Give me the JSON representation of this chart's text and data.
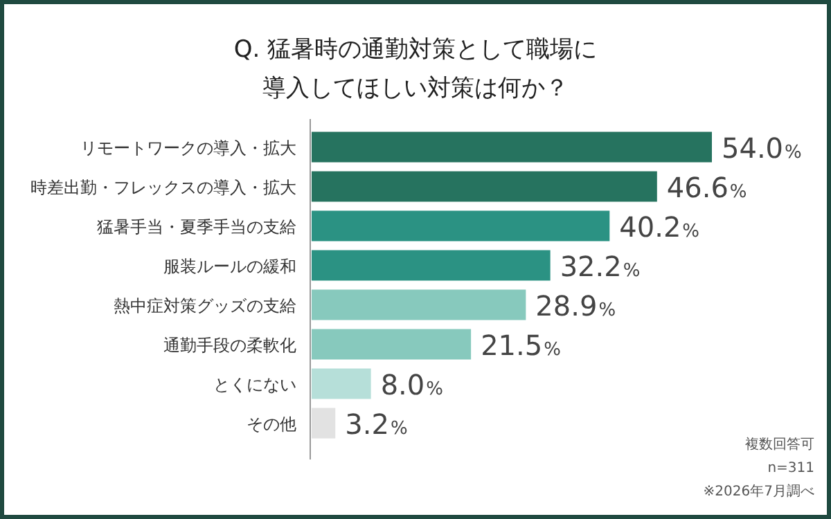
{
  "chart_data": {
    "type": "bar",
    "orientation": "horizontal",
    "title": "Q. 猛暑時の通勤対策として職場に導入してほしい対策は何か？",
    "categories": [
      "リモートワークの導入・拡大",
      "時差出勤・フレックスの導入・拡大",
      "猛暑手当・夏季手当の支給",
      "服装ルールの緩和",
      "熱中症対策グッズの支給",
      "通勤手段の柔軟化",
      "とくにない",
      "その他"
    ],
    "values": [
      54.0,
      46.6,
      40.2,
      32.2,
      28.9,
      21.5,
      8.0,
      3.2
    ],
    "colors": [
      "#26735f",
      "#26735f",
      "#2b9283",
      "#2b9283",
      "#87c9bd",
      "#87c9bd",
      "#b6dfd9",
      "#e2e2e2"
    ],
    "value_labels": [
      "54.0%",
      "46.6%",
      "40.2%",
      "32.2%",
      "28.9%",
      "21.5%",
      "8.0%",
      "3.2%"
    ],
    "annotations": [
      "複数回答可",
      "n=311",
      "※2026年7月調べ"
    ]
  }
}
